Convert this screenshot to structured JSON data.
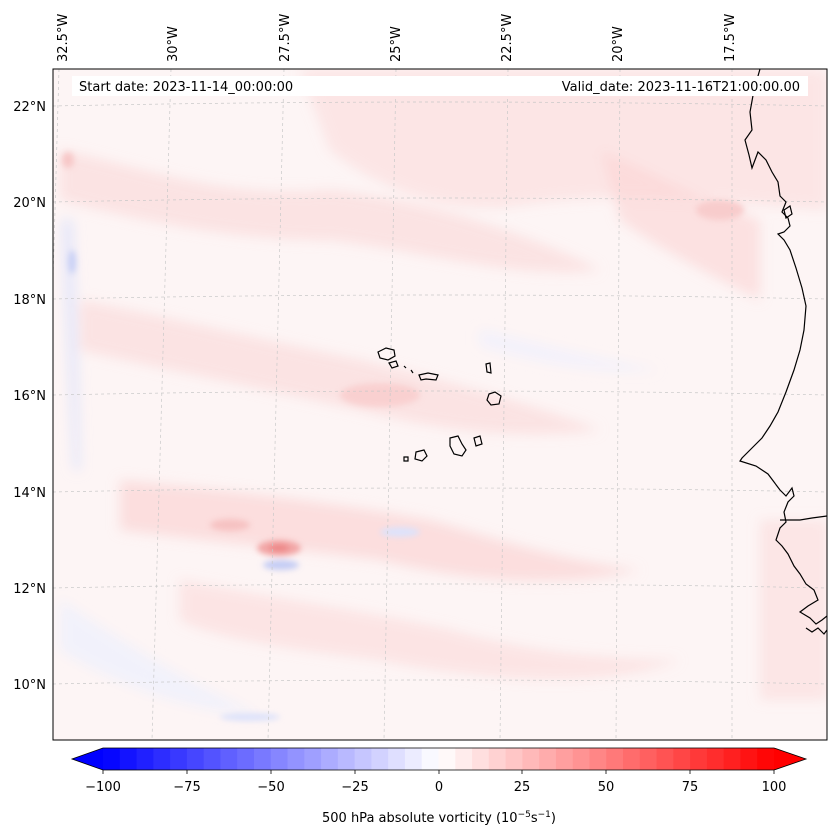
{
  "map": {
    "info_start": "Start date: 2023-11-14_00:00:00",
    "info_valid": "Valid_date: 2023-11-16T21:00:00.00",
    "lon_labels": [
      "32.5°W",
      "30°W",
      "27.5°W",
      "25°W",
      "22.5°W",
      "20°W",
      "17.5°W"
    ],
    "lat_labels": [
      "22°N",
      "20°N",
      "18°N",
      "16°N",
      "14°N",
      "12°N",
      "10°N"
    ]
  },
  "colorbar": {
    "ticks": [
      "−100",
      "−75",
      "−50",
      "−25",
      "0",
      "25",
      "50",
      "75",
      "100"
    ],
    "title_main": "500 hPa absolute vorticity (10",
    "title_exp1": "−5",
    "title_mid": "s",
    "title_exp2": "−1",
    "title_end": ")",
    "vmin": -100,
    "vmax": 100,
    "levels": 41,
    "colormap": "bwr"
  },
  "colors": {
    "field_base": "#fdf5f5",
    "positive": "#ff0000",
    "negative": "#0000ff",
    "coastline": "#000000",
    "gridline": "#bdbdbd"
  }
}
